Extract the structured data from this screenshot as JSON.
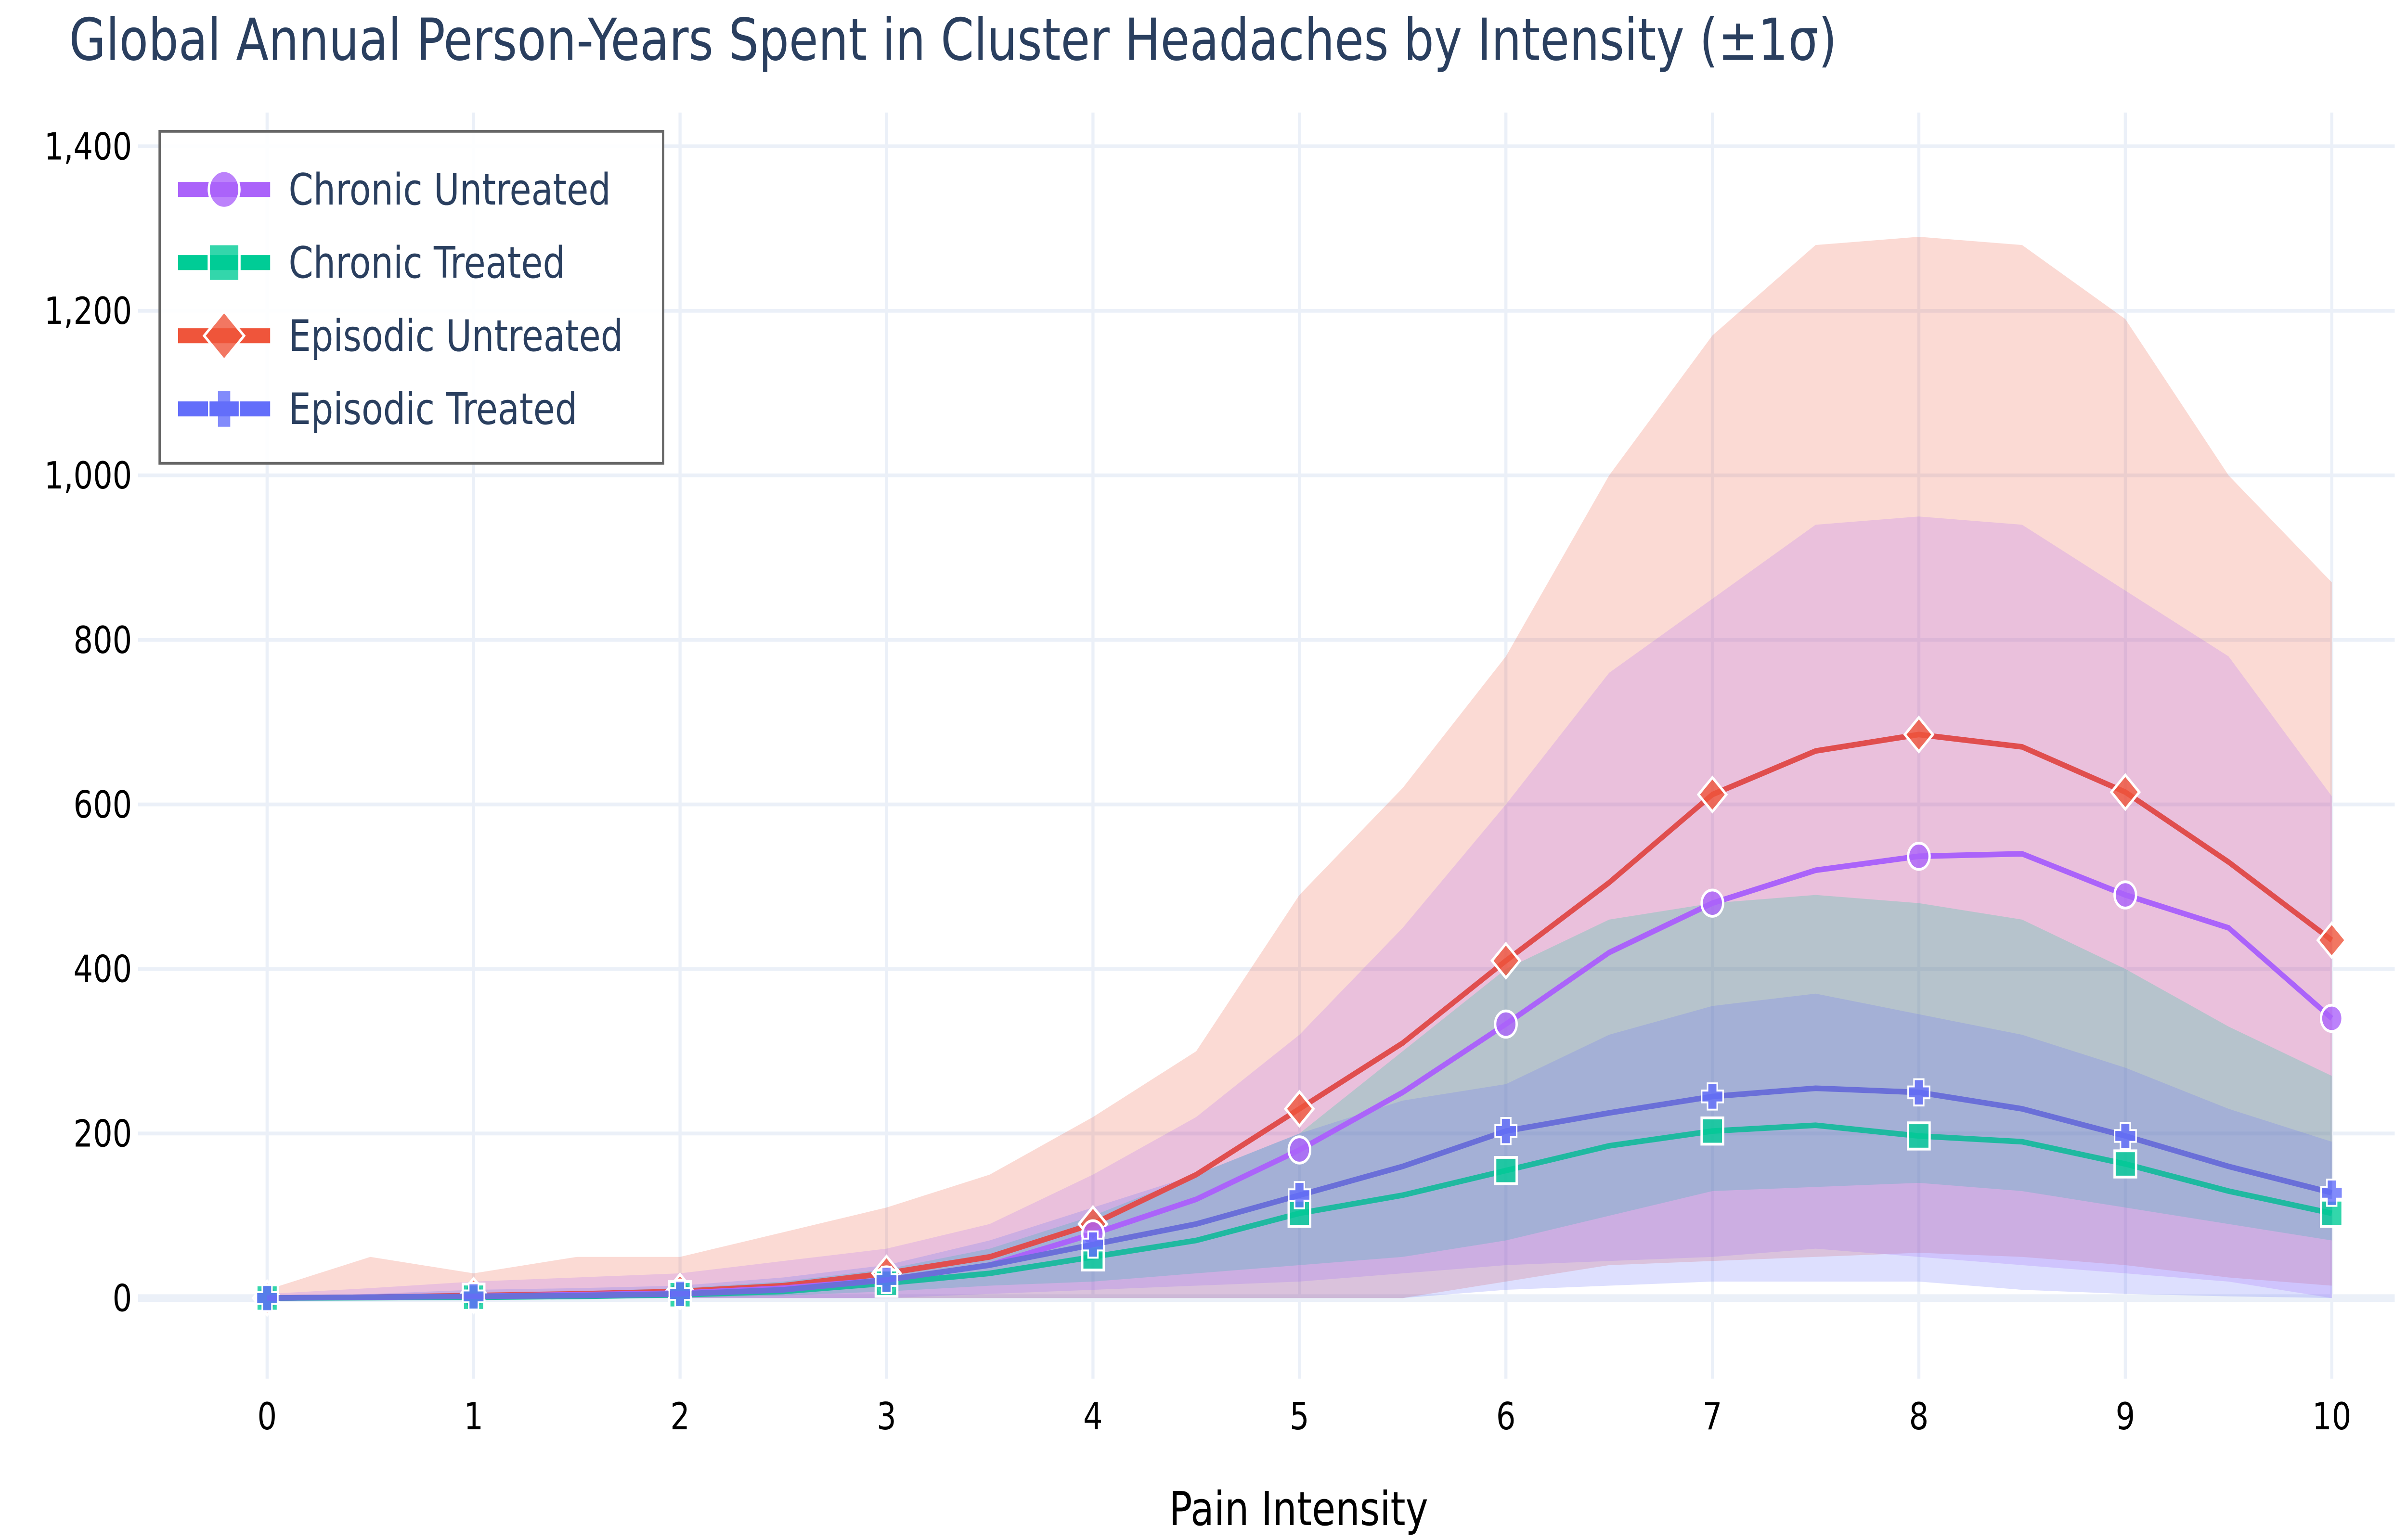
{
  "chart_data": {
    "type": "line",
    "title": "Global Annual Person-Years Spent in Cluster Headaches by Intensity (±1σ)",
    "xlabel": "Pain Intensity",
    "ylabel": "",
    "xlim": [
      -0.3,
      10.4
    ],
    "ylim": [
      -85,
      1440
    ],
    "grid": true,
    "legend_placement": "top-left",
    "xticks": [
      0,
      1,
      2,
      3,
      4,
      5,
      6,
      7,
      8,
      9,
      10
    ],
    "yticks": [
      0,
      200,
      400,
      600,
      800,
      1000,
      1200,
      1400
    ],
    "ytick_labels": [
      "0",
      "200",
      "400",
      "600",
      "800",
      "1,000",
      "1,200",
      "1,400"
    ],
    "x": [
      0,
      0.5,
      1,
      1.5,
      2,
      2.5,
      3,
      3.5,
      4,
      4.5,
      5,
      5.5,
      6,
      6.5,
      7,
      7.5,
      8,
      8.5,
      9,
      9.5,
      10
    ],
    "band": "±1σ",
    "series": [
      {
        "name": "Chronic Untreated",
        "color": "#ab63fa",
        "marker": "circle",
        "values": [
          0,
          1,
          2,
          4,
          6,
          12,
          22,
          40,
          78,
          120,
          180,
          250,
          333,
          420,
          480,
          520,
          537,
          540,
          490,
          450,
          340
        ],
        "upper": [
          5,
          12,
          20,
          25,
          30,
          45,
          60,
          90,
          150,
          220,
          320,
          450,
          600,
          760,
          850,
          940,
          950,
          940,
          860,
          780,
          610
        ],
        "lower": [
          0,
          0,
          0,
          0,
          0,
          0,
          0,
          5,
          10,
          15,
          20,
          30,
          40,
          45,
          50,
          60,
          50,
          40,
          30,
          20,
          0
        ]
      },
      {
        "name": "Chronic Treated",
        "color": "#00cc96",
        "marker": "square",
        "values": [
          0,
          0.5,
          1,
          2,
          4,
          8,
          18,
          30,
          50,
          70,
          103,
          125,
          155,
          185,
          203,
          210,
          197,
          190,
          163,
          130,
          103
        ],
        "upper": [
          0,
          3,
          5,
          8,
          12,
          20,
          35,
          60,
          100,
          150,
          200,
          300,
          400,
          460,
          480,
          490,
          480,
          460,
          400,
          330,
          270
        ],
        "lower": [
          0,
          0,
          0,
          0,
          0,
          3,
          8,
          15,
          20,
          30,
          40,
          50,
          70,
          100,
          130,
          135,
          140,
          130,
          110,
          90,
          70
        ]
      },
      {
        "name": "Episodic Untreated",
        "color": "#ef553b",
        "marker": "diamond",
        "values": [
          0,
          1,
          3,
          5,
          8,
          15,
          30,
          50,
          90,
          150,
          230,
          310,
          410,
          505,
          612,
          665,
          685,
          670,
          615,
          530,
          435
        ],
        "upper": [
          10,
          50,
          30,
          50,
          50,
          80,
          110,
          150,
          220,
          300,
          490,
          620,
          780,
          1000,
          1170,
          1280,
          1290,
          1280,
          1190,
          1000,
          870
        ],
        "lower": [
          0,
          0,
          0,
          0,
          0,
          0,
          0,
          0,
          0,
          0,
          0,
          0,
          20,
          40,
          45,
          50,
          55,
          50,
          40,
          25,
          15
        ]
      },
      {
        "name": "Episodic Treated",
        "color": "#636efa",
        "marker": "cross",
        "values": [
          0,
          1,
          2,
          3,
          5,
          10,
          22,
          40,
          65,
          90,
          125,
          160,
          203,
          225,
          245,
          255,
          250,
          230,
          197,
          160,
          128
        ],
        "upper": [
          0,
          5,
          10,
          12,
          15,
          25,
          40,
          70,
          110,
          150,
          200,
          240,
          260,
          320,
          355,
          370,
          345,
          320,
          280,
          230,
          190
        ],
        "lower": [
          0,
          0,
          0,
          0,
          0,
          0,
          0,
          0,
          0,
          0,
          0,
          0,
          10,
          15,
          20,
          20,
          20,
          10,
          5,
          2,
          0
        ]
      }
    ]
  }
}
